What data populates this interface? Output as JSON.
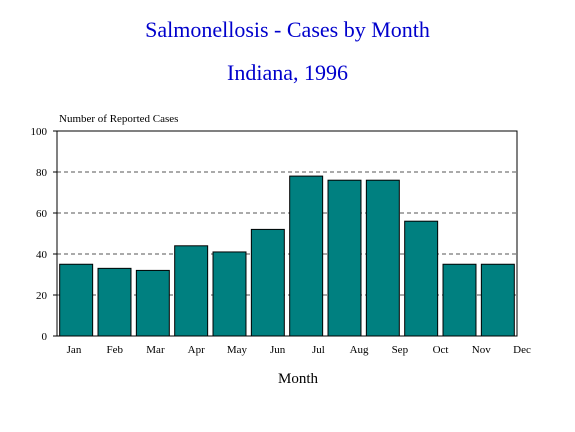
{
  "chart_data": {
    "type": "bar",
    "title": "Salmonellosis - Cases by Month",
    "subtitle": "Indiana, 1996",
    "ylabel": "Number of Reported Cases",
    "xlabel": "Month",
    "categories": [
      "Jan",
      "Feb",
      "Mar",
      "Apr",
      "May",
      "Jun",
      "Jul",
      "Aug",
      "Sep",
      "Oct",
      "Nov",
      "Dec"
    ],
    "series": [
      {
        "values": [
          35,
          33,
          32,
          44,
          41,
          52,
          78,
          76,
          76,
          56,
          35,
          35
        ]
      }
    ],
    "ylim": [
      0,
      100
    ],
    "yticks": [
      "0",
      "20",
      "40",
      "60",
      "80",
      "100"
    ],
    "grid": "dashed horizontal",
    "bar_color": "#008080",
    "bar_edge_color": "#000000"
  }
}
